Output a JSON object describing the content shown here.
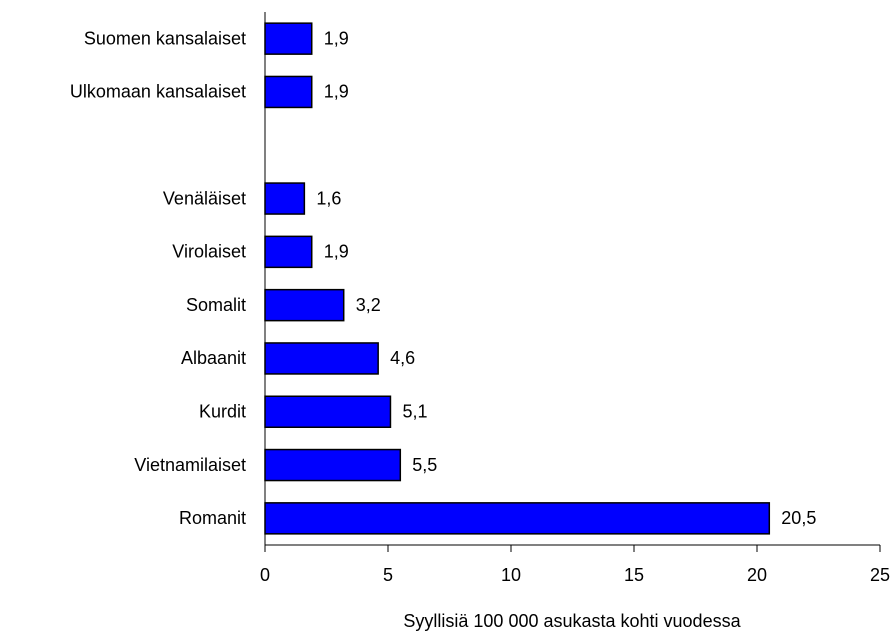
{
  "chart_data": {
    "type": "bar",
    "orientation": "horizontal",
    "x_label": "Syyllisiä 100 000 asukasta kohti vuodessa",
    "categories": [
      "Suomen kansalaiset",
      "Ulkomaan kansalaiset",
      null,
      "Venäläiset",
      "Virolaiset",
      "Somalit",
      "Albaanit",
      "Kurdit",
      "Vietnamilaiset",
      "Romanit"
    ],
    "values": [
      1.9,
      1.9,
      null,
      1.6,
      1.9,
      3.2,
      4.6,
      5.1,
      5.5,
      20.5
    ],
    "value_labels": [
      "1,9",
      "1,9",
      null,
      "1,6",
      "1,9",
      "3,2",
      "4,6",
      "5,1",
      "5,5",
      "20,5"
    ],
    "color": "#0000ff",
    "xlim": [
      0,
      25
    ],
    "xticks": [
      0,
      5,
      10,
      15,
      20,
      25
    ],
    "grid": false
  }
}
